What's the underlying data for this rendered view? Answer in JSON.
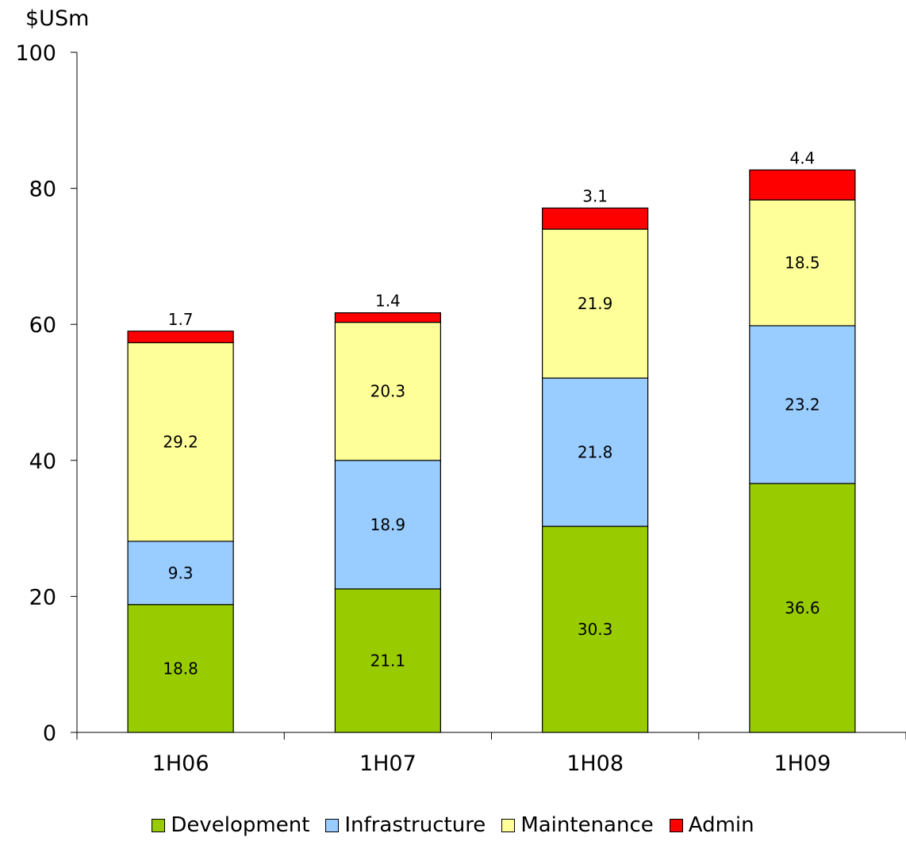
{
  "chart_data": {
    "type": "bar",
    "stacked": true,
    "ylabel": "$USm",
    "ylim": [
      0,
      100
    ],
    "yticks": [
      0,
      20,
      40,
      60,
      80,
      100
    ],
    "categories": [
      "1H06",
      "1H07",
      "1H08",
      "1H09"
    ],
    "series": [
      {
        "name": "Development",
        "color": "#99cc00",
        "values": [
          18.8,
          21.1,
          30.3,
          36.6
        ]
      },
      {
        "name": "Infrastructure",
        "color": "#99ccff",
        "values": [
          9.3,
          18.9,
          21.8,
          23.2
        ]
      },
      {
        "name": "Maintenance",
        "color": "#ffff99",
        "values": [
          29.2,
          20.3,
          21.9,
          18.5
        ]
      },
      {
        "name": "Admin",
        "color": "#ff0000",
        "values": [
          1.7,
          1.4,
          3.1,
          4.4
        ]
      }
    ],
    "legend_position": "bottom",
    "grid": false
  }
}
